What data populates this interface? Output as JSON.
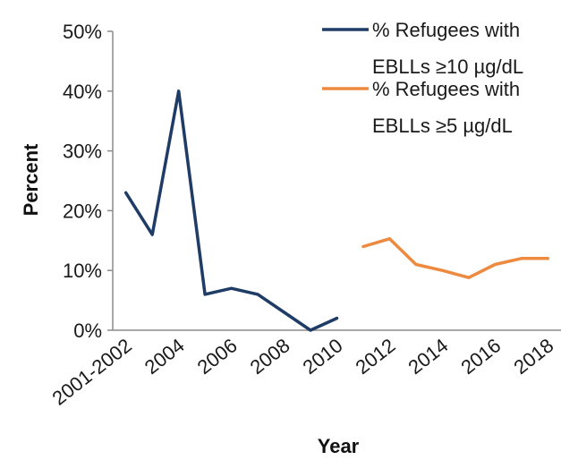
{
  "chart_data": {
    "type": "line",
    "title": "",
    "xlabel": "Year",
    "ylabel": "Percent",
    "ylim": [
      0,
      50
    ],
    "y_ticks": [
      "0%",
      "10%",
      "20%",
      "30%",
      "40%",
      "50%"
    ],
    "categories": [
      "2001-2002",
      "2003",
      "2004",
      "2005",
      "2006",
      "2007",
      "2008",
      "2009",
      "2010",
      "2011",
      "2012",
      "2013",
      "2014",
      "2015",
      "2016",
      "2017",
      "2018"
    ],
    "x_tick_labels": [
      "2001-2002",
      "",
      "2004",
      "",
      "2006",
      "",
      "2008",
      "",
      "2010",
      "",
      "2012",
      "",
      "2014",
      "",
      "2016",
      "",
      "2018"
    ],
    "grid": false,
    "legend_position": "top-right",
    "series": [
      {
        "name": "% Refugees with EBLLs ≥10 µg/dL",
        "legend_lines": [
          "% Refugees with",
          "EBLLs ≥10 µg/dL"
        ],
        "color": "#1f3c66",
        "values": [
          23,
          16,
          40,
          6,
          7,
          6,
          3,
          0,
          2,
          null,
          null,
          null,
          null,
          null,
          null,
          null,
          null
        ]
      },
      {
        "name": "% Refugees with EBLLs ≥5 µg/dL",
        "legend_lines": [
          "% Refugees with",
          "EBLLs ≥5 µg/dL"
        ],
        "color": "#ed8a3f",
        "values": [
          null,
          null,
          null,
          null,
          null,
          null,
          null,
          null,
          null,
          14,
          15.3,
          11,
          10,
          8.8,
          11,
          12,
          12
        ]
      }
    ]
  }
}
